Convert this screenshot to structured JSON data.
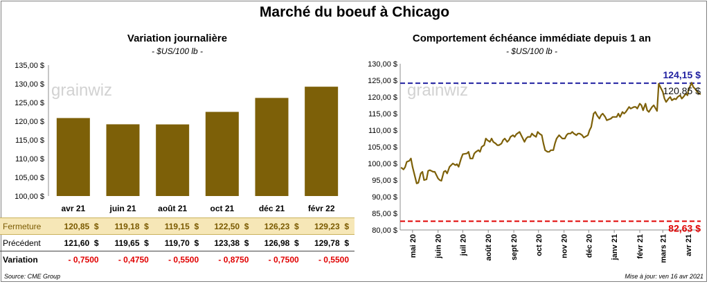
{
  "title": "Marché du boeuf à Chicago",
  "left": {
    "title": "Variation journalière",
    "subtitle": "- $US/100 lb -",
    "watermark": "grainwiz"
  },
  "right": {
    "title": "Comportement échéance immédiate depuis 1 an",
    "subtitle": "- $US/100 lb -",
    "watermark": "grainwiz"
  },
  "table": {
    "rows": [
      {
        "label": "Fermeture",
        "values": [
          "120,85  $",
          "119,18  $",
          "119,15  $",
          "122,50  $",
          "126,23  $",
          "129,23  $"
        ]
      },
      {
        "label": "Précédent",
        "values": [
          "121,60  $",
          "119,65  $",
          "119,70  $",
          "123,38  $",
          "126,98  $",
          "129,78  $"
        ]
      },
      {
        "label": "Variation",
        "values": [
          "- 0,7500",
          "- 0,4750",
          "- 0,5500",
          "- 0,8750",
          "- 0,7500",
          "- 0,5500"
        ]
      }
    ]
  },
  "footer": {
    "source": "Source: CME Group",
    "updated": "Mise à jour: ven 16 avr 2021"
  },
  "chart_data": [
    {
      "type": "bar",
      "title": "Variation journalière",
      "subtitle": "- $US/100 lb -",
      "categories": [
        "avr 21",
        "juin 21",
        "août 21",
        "oct 21",
        "déc 21",
        "févr 22"
      ],
      "values": [
        120.85,
        119.18,
        119.15,
        122.5,
        126.23,
        129.23
      ],
      "ylim": [
        100,
        135
      ],
      "yticks": [
        100,
        105,
        110,
        115,
        120,
        125,
        130,
        135
      ],
      "ytick_labels": [
        "100,00 $",
        "105,00 $",
        "110,00 $",
        "115,00 $",
        "120,00 $",
        "125,00 $",
        "130,00 $",
        "135,00 $"
      ],
      "color": "#7d6008",
      "grid": false
    },
    {
      "type": "line",
      "title": "Comportement échéance immédiate depuis 1 an",
      "subtitle": "- $US/100 lb -",
      "ylim": [
        80,
        130
      ],
      "yticks": [
        80,
        85,
        90,
        95,
        100,
        105,
        110,
        115,
        120,
        125,
        130
      ],
      "ytick_labels": [
        "80,00 $",
        "85,00 $",
        "90,00 $",
        "95,00 $",
        "100,00 $",
        "105,00 $",
        "110,00 $",
        "115,00 $",
        "120,00 $",
        "125,00 $",
        "130,00 $"
      ],
      "xlim": [
        "2020-04-16",
        "2021-04-16"
      ],
      "xticks": [
        "2020-05-01",
        "2020-06-01",
        "2020-07-01",
        "2020-08-01",
        "2020-09-01",
        "2020-10-01",
        "2020-11-01",
        "2020-12-01",
        "2021-01-01",
        "2021-02-01",
        "2021-03-01",
        "2021-04-01"
      ],
      "xtick_labels": [
        "mai 20",
        "juin 20",
        "juil 20",
        "août 20",
        "sept 20",
        "oct 20",
        "nov 20",
        "déc 20",
        "janv 21",
        "févr 21",
        "mars 21",
        "avr 21"
      ],
      "series": [
        {
          "color": "#7d6008",
          "x": [
            "2020-04-17",
            "2020-04-20",
            "2020-04-22",
            "2020-04-24",
            "2020-04-27",
            "2020-04-29",
            "2020-05-01",
            "2020-05-04",
            "2020-05-06",
            "2020-05-08",
            "2020-05-11",
            "2020-05-13",
            "2020-05-15",
            "2020-05-18",
            "2020-05-20",
            "2020-05-22",
            "2020-05-26",
            "2020-05-28",
            "2020-06-01",
            "2020-06-03",
            "2020-06-05",
            "2020-06-08",
            "2020-06-10",
            "2020-06-12",
            "2020-06-15",
            "2020-06-17",
            "2020-06-19",
            "2020-06-22",
            "2020-06-24",
            "2020-06-26",
            "2020-06-29",
            "2020-07-01",
            "2020-07-06",
            "2020-07-08",
            "2020-07-10",
            "2020-07-13",
            "2020-07-15",
            "2020-07-17",
            "2020-07-20",
            "2020-07-22",
            "2020-07-24",
            "2020-07-27",
            "2020-07-29",
            "2020-07-31",
            "2020-08-03",
            "2020-08-05",
            "2020-08-07",
            "2020-08-10",
            "2020-08-12",
            "2020-08-14",
            "2020-08-17",
            "2020-08-19",
            "2020-08-21",
            "2020-08-24",
            "2020-08-26",
            "2020-08-28",
            "2020-08-31",
            "2020-09-02",
            "2020-09-04",
            "2020-09-08",
            "2020-09-10",
            "2020-09-14",
            "2020-09-16",
            "2020-09-18",
            "2020-09-21",
            "2020-09-23",
            "2020-09-25",
            "2020-09-28",
            "2020-09-30",
            "2020-10-02",
            "2020-10-05",
            "2020-10-07",
            "2020-10-09",
            "2020-10-12",
            "2020-10-14",
            "2020-10-16",
            "2020-10-19",
            "2020-10-21",
            "2020-10-23",
            "2020-10-26",
            "2020-10-28",
            "2020-10-30",
            "2020-11-02",
            "2020-11-04",
            "2020-11-06",
            "2020-11-09",
            "2020-11-11",
            "2020-11-13",
            "2020-11-16",
            "2020-11-18",
            "2020-11-20",
            "2020-11-23",
            "2020-11-25",
            "2020-11-30",
            "2020-12-02",
            "2020-12-04",
            "2020-12-07",
            "2020-12-09",
            "2020-12-11",
            "2020-12-14",
            "2020-12-16",
            "2020-12-18",
            "2020-12-21",
            "2020-12-23",
            "2020-12-28",
            "2020-12-30",
            "2021-01-04",
            "2021-01-06",
            "2021-01-08",
            "2021-01-11",
            "2021-01-13",
            "2021-01-15",
            "2021-01-19",
            "2021-01-21",
            "2021-01-25",
            "2021-01-27",
            "2021-01-29",
            "2021-02-01",
            "2021-02-03",
            "2021-02-05",
            "2021-02-08",
            "2021-02-10",
            "2021-02-12",
            "2021-02-16",
            "2021-02-18",
            "2021-02-22",
            "2021-02-24",
            "2021-02-26",
            "2021-03-01",
            "2021-03-03",
            "2021-03-05",
            "2021-03-08",
            "2021-03-10",
            "2021-03-12",
            "2021-03-15",
            "2021-03-17",
            "2021-03-19",
            "2021-03-22",
            "2021-03-24",
            "2021-03-26",
            "2021-03-29",
            "2021-03-31",
            "2021-04-01",
            "2021-04-05",
            "2021-04-07",
            "2021-04-09",
            "2021-04-12",
            "2021-04-14",
            "2021-04-16"
          ],
          "y": [
            98.8,
            98.2,
            98.9,
            100.5,
            100.8,
            101.5,
            99.0,
            96.0,
            94.0,
            94.2,
            97.0,
            97.5,
            95.0,
            95.2,
            97.8,
            98.0,
            97.5,
            97.5,
            95.5,
            95.0,
            94.8,
            97.5,
            97.8,
            97.0,
            99.0,
            99.5,
            100.0,
            99.5,
            99.8,
            99.0,
            101.5,
            102.8,
            103.0,
            103.5,
            101.5,
            101.5,
            103.0,
            103.5,
            104.0,
            103.5,
            105.0,
            105.5,
            107.5,
            107.0,
            106.5,
            107.5,
            106.5,
            106.0,
            105.5,
            105.5,
            106.0,
            107.0,
            107.5,
            106.5,
            107.0,
            108.0,
            108.5,
            108.0,
            108.8,
            109.5,
            108.5,
            106.5,
            107.5,
            108.0,
            108.0,
            109.0,
            108.5,
            108.0,
            109.5,
            109.0,
            108.5,
            106.0,
            104.0,
            103.5,
            103.5,
            104.0,
            104.0,
            106.0,
            107.5,
            108.5,
            108.0,
            107.5,
            107.5,
            108.5,
            109.0,
            109.0,
            109.5,
            109.0,
            108.5,
            109.0,
            109.0,
            108.5,
            107.8,
            108.5,
            110.0,
            111.0,
            115.0,
            115.5,
            114.5,
            113.5,
            114.5,
            115.0,
            114.0,
            113.0,
            113.5,
            114.0,
            114.0,
            115.0,
            114.0,
            115.5,
            115.0,
            115.5,
            117.0,
            116.5,
            117.0,
            117.0,
            116.5,
            118.0,
            117.5,
            116.0,
            118.0,
            116.0,
            115.5,
            117.0,
            117.5,
            115.8,
            124.0,
            123.0,
            121.5,
            119.5,
            118.5,
            119.5,
            120.0,
            119.0,
            119.5,
            119.3,
            120.0,
            120.5,
            119.5,
            120.0,
            121.0,
            120.5,
            122.0,
            124.3,
            123.0,
            122.5,
            121.5,
            121.0,
            120.85
          ]
        }
      ],
      "reference_lines": [
        {
          "value": 124.15,
          "label": "124,15 $",
          "color": "#1f1fa0",
          "style": "dashed"
        },
        {
          "value": 82.63,
          "label": "82,63 $",
          "color": "#e00000",
          "style": "dashed"
        }
      ],
      "last_value_label": "120,85 $",
      "grid": false
    }
  ]
}
